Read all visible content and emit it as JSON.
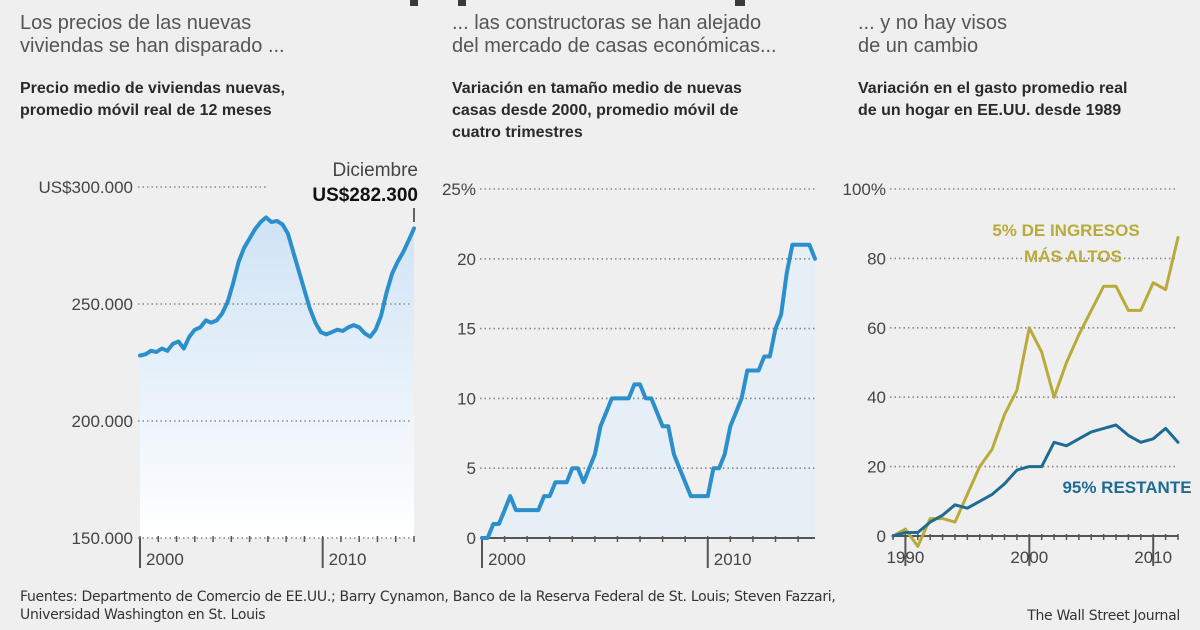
{
  "panels": [
    {
      "heading": [
        "Los precios de las nuevas",
        "viviendas se han disparado ..."
      ],
      "subheading": [
        "Precio medio de viviendas nuevas,",
        "promedio móvil real de 12 meses"
      ]
    },
    {
      "heading": [
        "... las constructoras se han alejado",
        "del mercado de casas económicas..."
      ],
      "subheading": [
        "Variación en tamaño medio de nuevas",
        "casas desde 2000, promedio móvil de",
        "cuatro trimestres"
      ]
    },
    {
      "heading": [
        "... y no hay visos",
        "de un cambio"
      ],
      "subheading": [
        "Variación en el gasto promedio real",
        "de un hogar en EE.UU. desde 1989"
      ]
    }
  ],
  "colors": {
    "background": "#efefef",
    "blue_line": "#2b8fcc",
    "blue_fill": "#d8e9f7",
    "gold_line": "#b8ab3a",
    "teal_line": "#1f6b94",
    "grid": "#888888"
  },
  "chart_data": [
    {
      "type": "area",
      "title": "Precio medio de viviendas nuevas, promedio móvil real de 12 meses",
      "xlabel": "",
      "ylabel": "",
      "xlim": [
        2000,
        2015
      ],
      "ylim": [
        150000,
        300000
      ],
      "yticks": [
        150000,
        200000,
        250000,
        300000
      ],
      "ytick_labels": [
        "150.000",
        "200.000",
        "250.000",
        "US$300.000"
      ],
      "xticks": [
        2000,
        2010
      ],
      "xtick_labels": [
        "2000",
        "2010"
      ],
      "grid": true,
      "annotation": {
        "label": "Diciembre",
        "value_label": "US$282.300",
        "x": 2015,
        "y": 282300
      },
      "series": [
        {
          "name": "Precio medio",
          "x": [
            2000.0,
            2000.3,
            2000.6,
            2000.9,
            2001.2,
            2001.5,
            2001.8,
            2002.1,
            2002.4,
            2002.7,
            2003.0,
            2003.3,
            2003.6,
            2003.9,
            2004.2,
            2004.5,
            2004.8,
            2005.1,
            2005.4,
            2005.7,
            2006.0,
            2006.3,
            2006.6,
            2006.9,
            2007.2,
            2007.5,
            2007.8,
            2008.1,
            2008.4,
            2008.7,
            2009.0,
            2009.3,
            2009.6,
            2009.9,
            2010.2,
            2010.5,
            2010.8,
            2011.1,
            2011.4,
            2011.7,
            2012.0,
            2012.3,
            2012.6,
            2012.9,
            2013.2,
            2013.5,
            2013.8,
            2014.1,
            2014.4,
            2014.7,
            2015.0
          ],
          "values": [
            228000,
            228500,
            230000,
            229500,
            231000,
            230000,
            233000,
            234000,
            231000,
            236000,
            239000,
            240000,
            243000,
            242000,
            243000,
            246000,
            251000,
            259000,
            268000,
            274000,
            278000,
            282000,
            285000,
            287000,
            285000,
            285500,
            284000,
            280000,
            272000,
            264000,
            256000,
            248000,
            242000,
            238000,
            237000,
            238000,
            239000,
            238500,
            240000,
            241000,
            240000,
            237500,
            236000,
            239000,
            245000,
            255000,
            263000,
            268000,
            272000,
            277000,
            282300
          ]
        }
      ]
    },
    {
      "type": "area",
      "title": "Variación en tamaño medio de nuevas casas desde 2000, promedio móvil de cuatro trimestres",
      "xlabel": "",
      "ylabel": "",
      "xlim": [
        2000,
        2014.75
      ],
      "ylim": [
        0,
        25
      ],
      "yticks": [
        0,
        5,
        10,
        15,
        20,
        25
      ],
      "ytick_labels": [
        "0",
        "5",
        "10",
        "15",
        "20",
        "25%"
      ],
      "xticks": [
        2000,
        2010
      ],
      "xtick_labels": [
        "2000",
        "2010"
      ],
      "grid": true,
      "series": [
        {
          "name": "Variación en tamaño (%)",
          "x": [
            2000.0,
            2000.25,
            2000.5,
            2000.75,
            2001.0,
            2001.25,
            2001.5,
            2001.75,
            2002.0,
            2002.25,
            2002.5,
            2002.75,
            2003.0,
            2003.25,
            2003.5,
            2003.75,
            2004.0,
            2004.25,
            2004.5,
            2004.75,
            2005.0,
            2005.25,
            2005.5,
            2005.75,
            2006.0,
            2006.25,
            2006.5,
            2006.75,
            2007.0,
            2007.25,
            2007.5,
            2007.75,
            2008.0,
            2008.25,
            2008.5,
            2008.75,
            2009.0,
            2009.25,
            2009.5,
            2009.75,
            2010.0,
            2010.25,
            2010.5,
            2010.75,
            2011.0,
            2011.25,
            2011.5,
            2011.75,
            2012.0,
            2012.25,
            2012.5,
            2012.75,
            2013.0,
            2013.25,
            2013.5,
            2013.75,
            2014.0,
            2014.25,
            2014.5,
            2014.75
          ],
          "values": [
            0,
            0,
            1,
            1,
            2,
            3,
            2,
            2,
            2,
            2,
            2,
            3,
            3,
            4,
            4,
            4,
            5,
            5,
            4,
            5,
            6,
            8,
            9,
            10,
            10,
            10,
            10,
            11,
            11,
            10,
            10,
            9,
            8,
            8,
            6,
            5,
            4,
            3,
            3,
            3,
            3,
            5,
            5,
            6,
            8,
            9,
            10,
            12,
            12,
            12,
            13,
            13,
            15,
            16,
            19,
            21,
            21,
            21,
            21,
            20
          ]
        }
      ]
    },
    {
      "type": "line",
      "title": "Variación en el gasto promedio real de un hogar en EE.UU. desde 1989",
      "xlabel": "",
      "ylabel": "",
      "xlim": [
        1989,
        2012
      ],
      "ylim": [
        0,
        100
      ],
      "yticks": [
        0,
        20,
        40,
        60,
        80,
        100
      ],
      "ytick_labels": [
        "0",
        "20",
        "40",
        "60",
        "80",
        "100%"
      ],
      "xticks": [
        1990,
        2000,
        2010
      ],
      "xtick_labels": [
        "1990",
        "2000",
        "2010"
      ],
      "grid": true,
      "series": [
        {
          "name": "5% DE INGRESOS MÁS ALTOS",
          "label_lines": [
            "5% DE INGRESOS",
            "MÁS ALTOS"
          ],
          "x": [
            1989,
            1990,
            1991,
            1992,
            1993,
            1994,
            1995,
            1996,
            1997,
            1998,
            1999,
            2000,
            2001,
            2002,
            2003,
            2004,
            2005,
            2006,
            2007,
            2008,
            2009,
            2010,
            2011,
            2012
          ],
          "values": [
            0,
            2,
            -3,
            5,
            5,
            4,
            12,
            20,
            25,
            35,
            42,
            60,
            53,
            40,
            50,
            58,
            65,
            72,
            72,
            65,
            65,
            73,
            71,
            86
          ]
        },
        {
          "name": "95% RESTANTE",
          "label_lines": [
            "95% RESTANTE"
          ],
          "x": [
            1989,
            1990,
            1991,
            1992,
            1993,
            1994,
            1995,
            1996,
            1997,
            1998,
            1999,
            2000,
            2001,
            2002,
            2003,
            2004,
            2005,
            2006,
            2007,
            2008,
            2009,
            2010,
            2011,
            2012
          ],
          "values": [
            0,
            1,
            1,
            4,
            6,
            9,
            8,
            10,
            12,
            15,
            19,
            20,
            20,
            27,
            26,
            28,
            30,
            31,
            32,
            29,
            27,
            28,
            31,
            27
          ]
        }
      ]
    }
  ],
  "footer": {
    "sources_line1": "Fuentes: Departmento de Comercio de EE.UU.; Barry Cynamon, Banco de la Reserva Federal de St. Louis; Steven Fazzari,",
    "sources_line2": "Universidad Washington en St. Louis",
    "credit": "The Wall Street Journal"
  }
}
